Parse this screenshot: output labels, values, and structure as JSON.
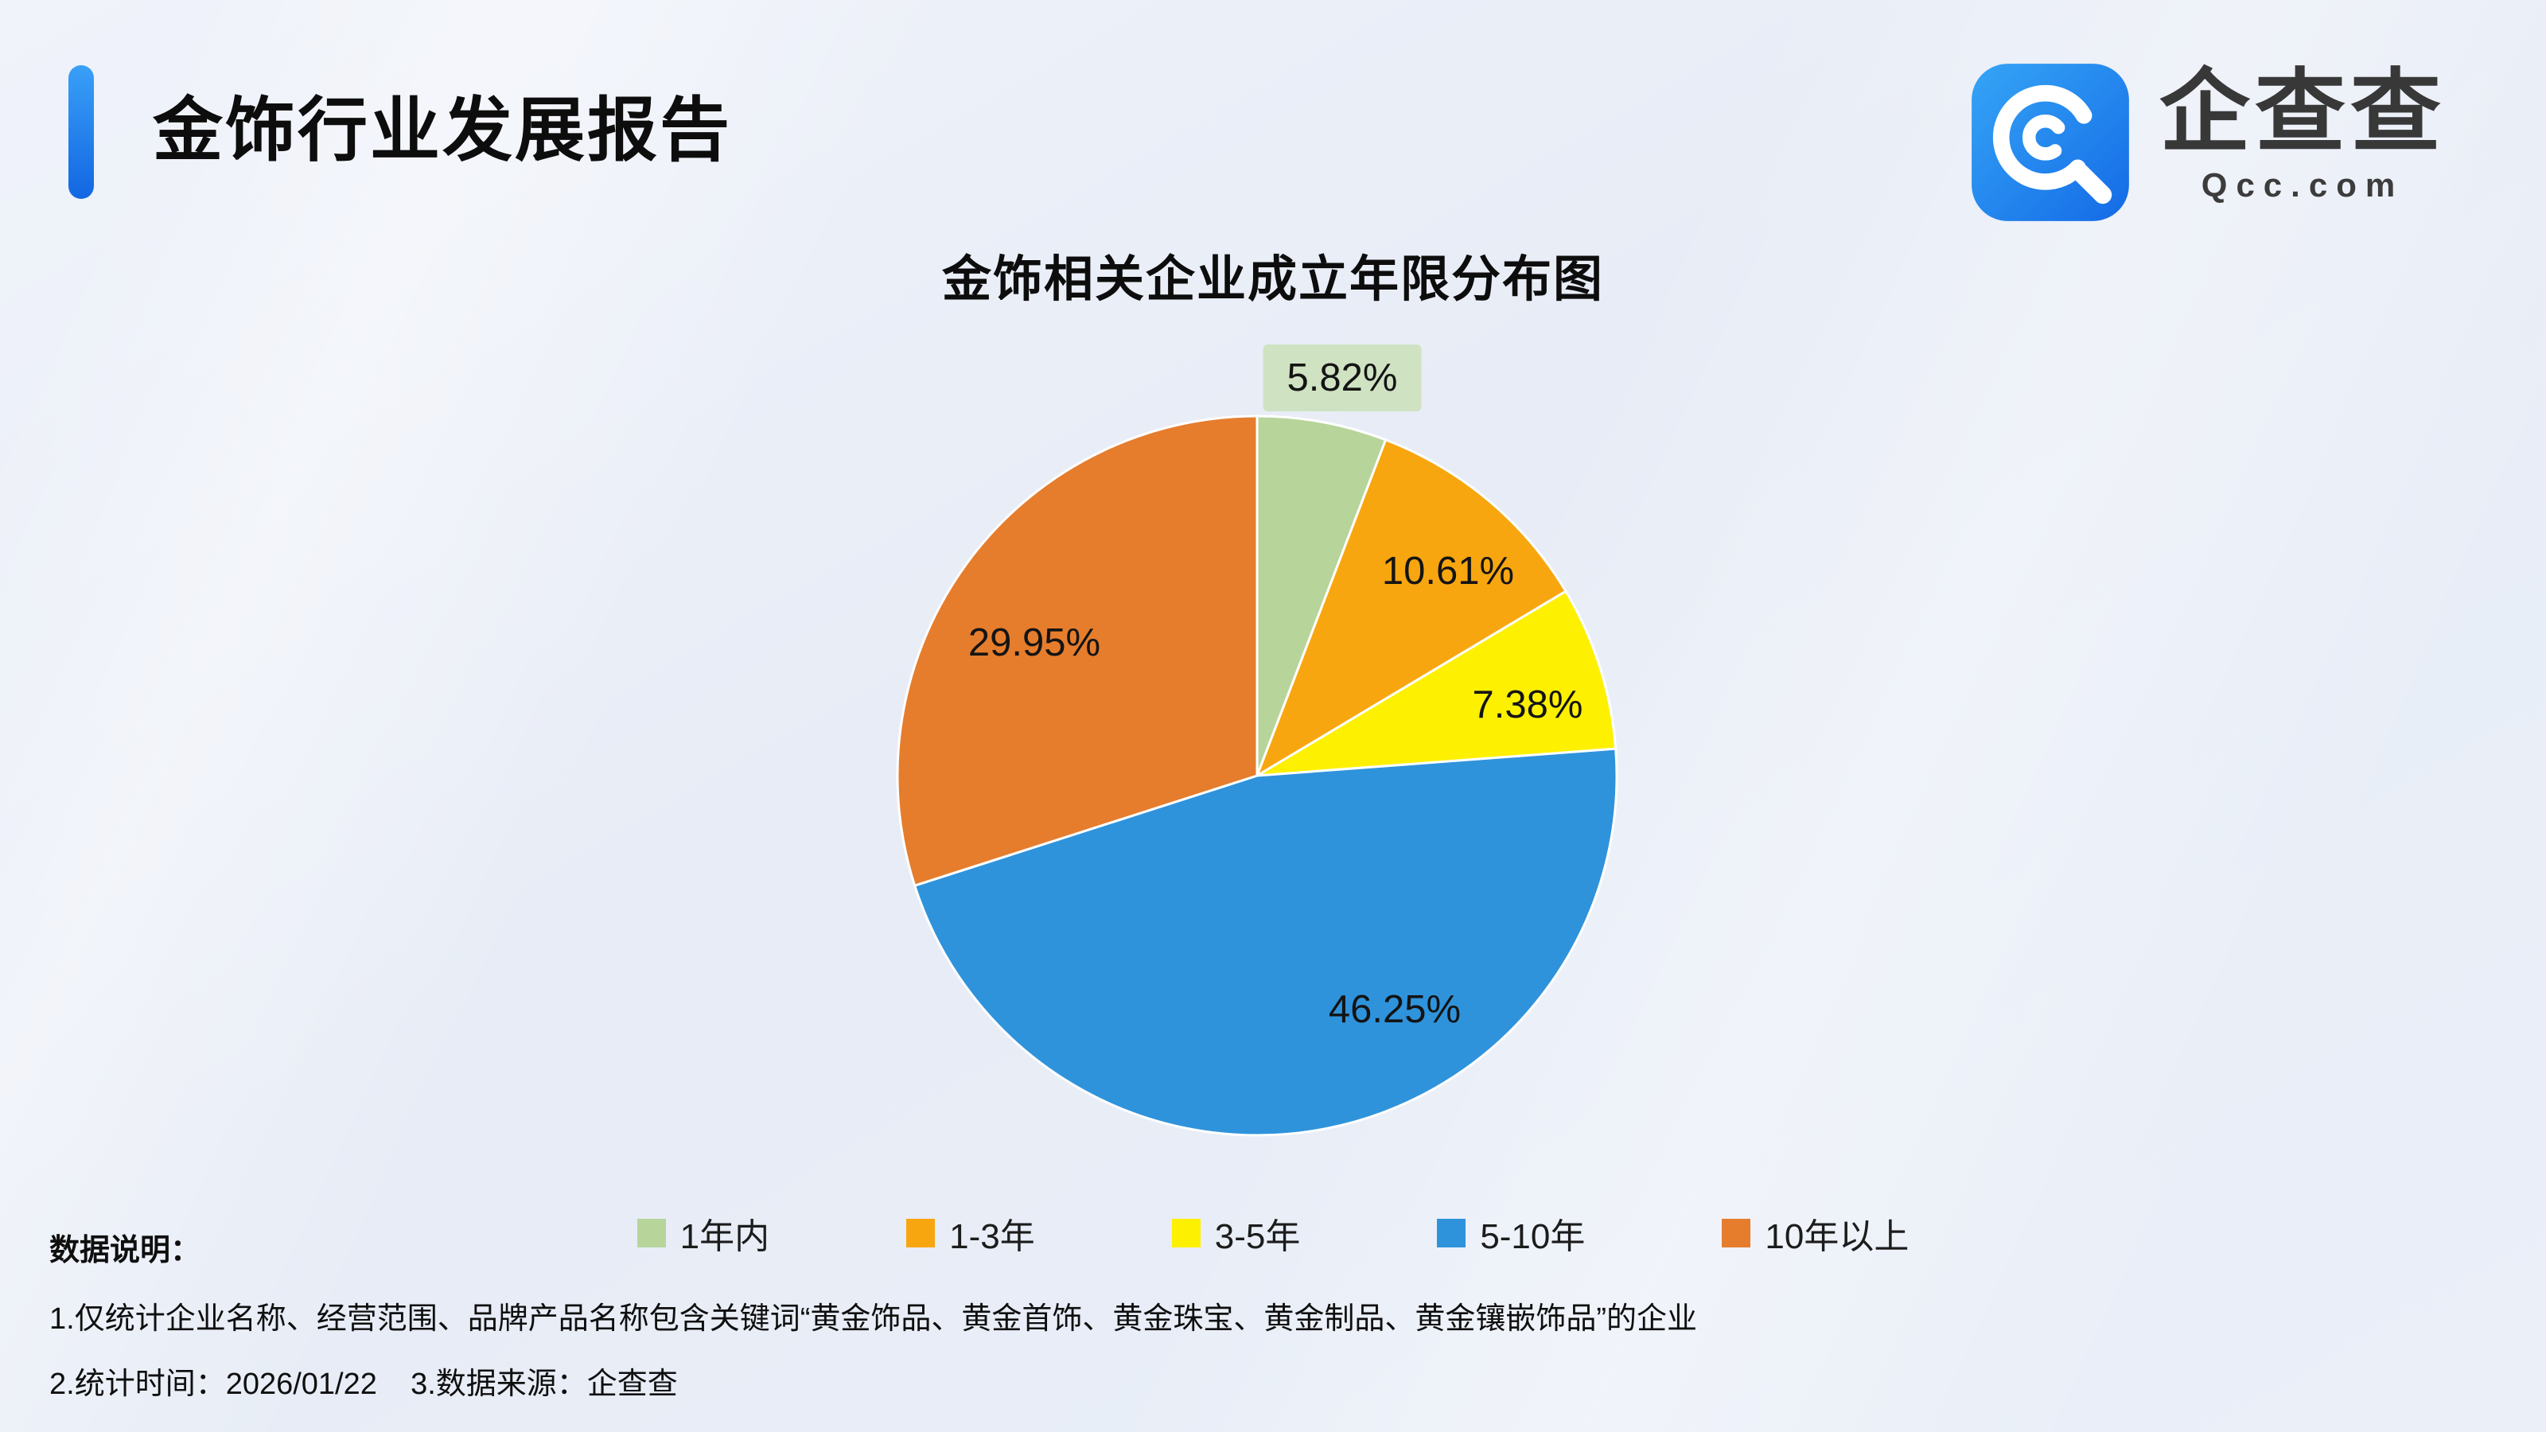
{
  "header": {
    "title": "金饰行业发展报告",
    "logo": {
      "name": "企查查",
      "domain": "Qcc.com",
      "icon": "qcc-logo-icon",
      "brand_blue": "#1e82f0"
    }
  },
  "chart": {
    "title": "金饰相关企业成立年限分布图"
  },
  "chart_data": {
    "type": "pie",
    "title": "金饰相关企业成立年限分布图",
    "unit": "percent",
    "start_angle_deg": 0,
    "direction": "clockwise",
    "legend_position": "bottom",
    "slices": [
      {
        "label": "1年内",
        "value": 5.82,
        "display": "5.82%",
        "color": "#b7d49b"
      },
      {
        "label": "1-3年",
        "value": 10.61,
        "display": "10.61%",
        "color": "#f8a60f"
      },
      {
        "label": "3-5年",
        "value": 7.38,
        "display": "7.38%",
        "color": "#fdf000"
      },
      {
        "label": "5-10年",
        "value": 46.25,
        "display": "46.25%",
        "color": "#2f93dc"
      },
      {
        "label": "10年以上",
        "value": 29.95,
        "display": "29.95%",
        "color": "#e57d2d"
      }
    ]
  },
  "footnotes": {
    "heading": "数据说明：",
    "line1": "1.仅统计企业名称、经营范围、品牌产品名称包含关键词“黄金饰品、黄金首饰、黄金珠宝、黄金制品、黄金镶嵌饰品”的企业",
    "line2": "2.统计时间：2026/01/22    3.数据来源：企查查"
  }
}
